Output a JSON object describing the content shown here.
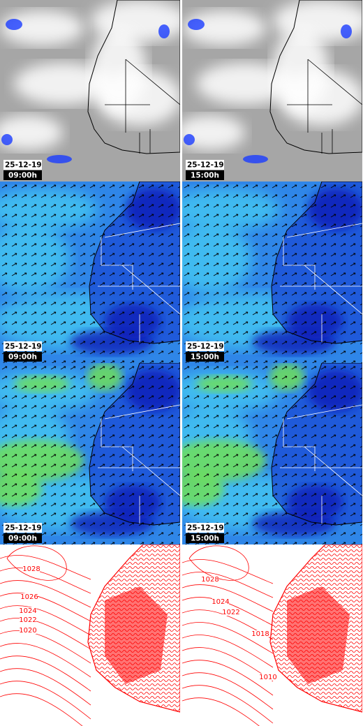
{
  "panels": [
    {
      "date": "25-12-19",
      "time": "09:00h"
    },
    {
      "date": "25-12-19",
      "time": "15:00h"
    },
    {
      "date": "25-12-19",
      "time": "09:00h"
    },
    {
      "date": "25-12-19",
      "time": "15:00h"
    },
    {
      "date": "25-12-19",
      "time": "09:00h"
    },
    {
      "date": "25-12-19",
      "time": "15:00h"
    }
  ],
  "isobars": [
    {
      "labels": [
        1028,
        1026,
        1024,
        1022,
        1020
      ]
    },
    {
      "labels": [
        1028,
        1024,
        1022,
        1018,
        1010
      ]
    }
  ]
}
